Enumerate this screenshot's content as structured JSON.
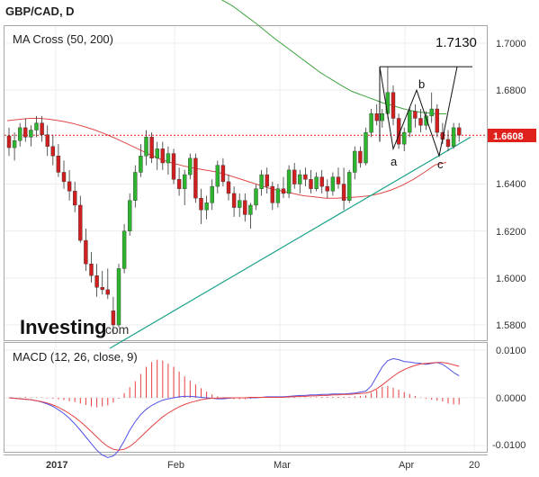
{
  "header": {
    "title": "GBP/CAD, D"
  },
  "brand": {
    "name": "Investing",
    "suffix": ".com"
  },
  "colors": {
    "bull": "#2db52d",
    "bear": "#d11f1f",
    "ma_fast": "#e04848",
    "ma_slow": "#3fa33f",
    "trend": "#19a389",
    "macd_line": "#5050e6",
    "signal_line": "#e64040",
    "hist": "#e64040",
    "price_tag": "#e0201a",
    "frame": "#a8a8a8",
    "grid": "#ececec"
  },
  "chart_data": [
    {
      "type": "candlestick",
      "title": "MA Cross (50, 200)",
      "ylim": [
        1.57,
        1.71
      ],
      "y_ticks": [
        "1.7000",
        "1.6800",
        "1.6600",
        "1.6400",
        "1.6200",
        "1.6000",
        "1.5800"
      ],
      "x_ticks": [
        "2017",
        "Feb",
        "Mar",
        "Apr",
        "20"
      ],
      "last_price_label": "1.6608",
      "annotations": {
        "target": "1.7130",
        "wave_a": "a",
        "wave_b": "b",
        "wave_c": "c"
      },
      "ohlc": [
        [
          1.6605,
          1.664,
          1.652,
          1.6555
        ],
        [
          1.6555,
          1.662,
          1.65,
          1.6585
        ],
        [
          1.6585,
          1.666,
          1.656,
          1.664
        ],
        [
          1.664,
          1.668,
          1.658,
          1.66
        ],
        [
          1.66,
          1.665,
          1.656,
          1.663
        ],
        [
          1.663,
          1.669,
          1.66,
          1.666
        ],
        [
          1.666,
          1.669,
          1.658,
          1.661
        ],
        [
          1.661,
          1.665,
          1.652,
          1.656
        ],
        [
          1.656,
          1.661,
          1.648,
          1.652
        ],
        [
          1.652,
          1.657,
          1.643,
          1.645
        ],
        [
          1.645,
          1.65,
          1.638,
          1.641
        ],
        [
          1.641,
          1.646,
          1.633,
          1.637
        ],
        [
          1.637,
          1.641,
          1.628,
          1.631
        ],
        [
          1.631,
          1.635,
          1.615,
          1.616
        ],
        [
          1.616,
          1.621,
          1.603,
          1.606
        ],
        [
          1.606,
          1.611,
          1.598,
          1.601
        ],
        [
          1.601,
          1.606,
          1.592,
          1.596
        ],
        [
          1.596,
          1.603,
          1.593,
          1.595
        ],
        [
          1.595,
          1.604,
          1.591,
          1.593
        ],
        [
          1.586,
          1.592,
          1.576,
          1.58
        ],
        [
          1.58,
          1.606,
          1.579,
          1.604
        ],
        [
          1.604,
          1.623,
          1.602,
          1.62
        ],
        [
          1.62,
          1.636,
          1.618,
          1.633
        ],
        [
          1.633,
          1.648,
          1.63,
          1.645
        ],
        [
          1.645,
          1.657,
          1.643,
          1.652
        ],
        [
          1.652,
          1.663,
          1.648,
          1.66
        ],
        [
          1.66,
          1.662,
          1.649,
          1.651
        ],
        [
          1.651,
          1.658,
          1.646,
          1.655
        ],
        [
          1.655,
          1.658,
          1.646,
          1.649
        ],
        [
          1.649,
          1.656,
          1.644,
          1.653
        ],
        [
          1.653,
          1.655,
          1.64,
          1.642
        ],
        [
          1.642,
          1.647,
          1.635,
          1.638
        ],
        [
          1.638,
          1.646,
          1.631,
          1.644
        ],
        [
          1.644,
          1.653,
          1.642,
          1.651
        ],
        [
          1.651,
          1.653,
          1.632,
          1.634
        ],
        [
          1.634,
          1.638,
          1.623,
          1.629
        ],
        [
          1.629,
          1.635,
          1.625,
          1.632
        ],
        [
          1.632,
          1.642,
          1.629,
          1.639
        ],
        [
          1.639,
          1.65,
          1.636,
          1.648
        ],
        [
          1.648,
          1.651,
          1.639,
          1.641
        ],
        [
          1.641,
          1.644,
          1.633,
          1.636
        ],
        [
          1.636,
          1.639,
          1.626,
          1.63
        ],
        [
          1.63,
          1.636,
          1.626,
          1.633
        ],
        [
          1.633,
          1.636,
          1.624,
          1.627
        ],
        [
          1.627,
          1.632,
          1.621,
          1.631
        ],
        [
          1.631,
          1.64,
          1.629,
          1.638
        ],
        [
          1.638,
          1.646,
          1.635,
          1.644
        ],
        [
          1.644,
          1.647,
          1.636,
          1.639
        ],
        [
          1.639,
          1.641,
          1.629,
          1.632
        ],
        [
          1.632,
          1.64,
          1.63,
          1.638
        ],
        [
          1.638,
          1.643,
          1.634,
          1.636
        ],
        [
          1.636,
          1.648,
          1.634,
          1.646
        ],
        [
          1.646,
          1.649,
          1.638,
          1.64
        ],
        [
          1.64,
          1.646,
          1.636,
          1.644
        ],
        [
          1.644,
          1.647,
          1.639,
          1.642
        ],
        [
          1.642,
          1.646,
          1.636,
          1.638
        ],
        [
          1.638,
          1.645,
          1.637,
          1.643
        ],
        [
          1.643,
          1.646,
          1.636,
          1.639
        ],
        [
          1.639,
          1.642,
          1.634,
          1.637
        ],
        [
          1.637,
          1.645,
          1.635,
          1.643
        ],
        [
          1.643,
          1.647,
          1.638,
          1.64
        ],
        [
          1.64,
          1.647,
          1.629,
          1.633
        ],
        [
          1.633,
          1.646,
          1.632,
          1.645
        ],
        [
          1.645,
          1.656,
          1.642,
          1.654
        ],
        [
          1.654,
          1.656,
          1.647,
          1.649
        ],
        [
          1.649,
          1.664,
          1.648,
          1.662
        ],
        [
          1.662,
          1.672,
          1.66,
          1.67
        ],
        [
          1.67,
          1.674,
          1.665,
          1.667
        ],
        [
          1.667,
          1.672,
          1.664,
          1.67
        ],
        [
          1.67,
          1.69,
          1.668,
          1.679
        ],
        [
          1.679,
          1.682,
          1.665,
          1.668
        ],
        [
          1.668,
          1.67,
          1.655,
          1.657
        ],
        [
          1.657,
          1.664,
          1.654,
          1.662
        ],
        [
          1.662,
          1.673,
          1.66,
          1.671
        ],
        [
          1.671,
          1.674,
          1.664,
          1.668
        ],
        [
          1.668,
          1.672,
          1.662,
          1.665
        ],
        [
          1.665,
          1.671,
          1.663,
          1.669
        ],
        [
          1.669,
          1.679,
          1.666,
          1.672
        ],
        [
          1.672,
          1.674,
          1.66,
          1.662
        ],
        [
          1.662,
          1.666,
          1.657,
          1.659
        ],
        [
          1.659,
          1.663,
          1.654,
          1.656
        ],
        [
          1.656,
          1.666,
          1.655,
          1.664
        ],
        [
          1.664,
          1.666,
          1.658,
          1.6608
        ]
      ],
      "ma_fast": [
        1.667,
        1.6675,
        1.668,
        1.668,
        1.6675,
        1.6668,
        1.6658,
        1.6645,
        1.663,
        1.6612,
        1.6592,
        1.657,
        1.6548,
        1.6525,
        1.6505,
        1.649,
        1.6478,
        1.6468,
        1.646,
        1.6452,
        1.644,
        1.6425,
        1.641,
        1.6395,
        1.638,
        1.637,
        1.636,
        1.635,
        1.6345,
        1.634,
        1.634,
        1.6342,
        1.6345,
        1.635,
        1.636,
        1.6375,
        1.6395,
        1.642,
        1.645,
        1.6482,
        1.6492
      ],
      "ma_slow": [
        1.7205,
        1.719,
        1.7175,
        1.716,
        1.714,
        1.712,
        1.71,
        1.708,
        1.7058,
        1.7036,
        1.7015,
        1.6995,
        1.6975,
        1.6955,
        1.6935,
        1.6915,
        1.6895,
        1.6875,
        1.6858,
        1.6842,
        1.6825,
        1.681,
        1.6795,
        1.6785,
        1.6775,
        1.6765,
        1.6755,
        1.6745,
        1.6738,
        1.673,
        1.6722,
        1.6715,
        1.671,
        1.6706,
        1.6703,
        1.67,
        1.6699,
        1.6699
      ]
    },
    {
      "type": "macd",
      "title": "MACD (12, 26, close, 9)",
      "ylim": [
        -0.011,
        0.011
      ],
      "y_ticks": [
        "0.0100",
        "0.0000",
        "-0.0100"
      ],
      "hist": [
        0.0,
        0.0,
        0.0001,
        0.0002,
        0.0001,
        0.0001,
        0.0001,
        -0.0001,
        -0.0002,
        -0.0003,
        -0.0005,
        -0.0007,
        -0.0009,
        -0.0012,
        -0.0015,
        -0.0018,
        -0.002,
        -0.0018,
        -0.0016,
        -0.001,
        -0.0002,
        0.001,
        0.0022,
        0.0035,
        0.005,
        0.0065,
        0.0075,
        0.008,
        0.0078,
        0.0072,
        0.0065,
        0.0055,
        0.0045,
        0.0036,
        0.0028,
        0.002,
        0.0013,
        0.0007,
        0.0003,
        0.0,
        -0.0002,
        -0.0003,
        -0.0003,
        -0.0003,
        -0.0002,
        -0.0001,
        0.0,
        0.0001,
        0.0002,
        0.0002,
        0.0001,
        0.0001,
        0.0001,
        0.0001,
        0.0001,
        0.0001,
        0.0001,
        0.0002,
        0.0002,
        0.0002,
        0.0002,
        0.0002,
        0.0002,
        0.0003,
        0.0004,
        0.0005,
        0.001,
        0.0017,
        0.0023,
        0.0025,
        0.0021,
        0.0017,
        0.0012,
        0.0008,
        0.0004,
        0.0001,
        -0.0002,
        -0.0004,
        -0.0006,
        -0.0008,
        -0.0012,
        -0.0014,
        -0.0014
      ],
      "macd": [
        0.0,
        -0.0001,
        -0.0002,
        -0.0003,
        -0.0004,
        -0.0006,
        -0.0009,
        -0.0013,
        -0.0018,
        -0.0025,
        -0.0033,
        -0.0043,
        -0.0055,
        -0.0068,
        -0.0082,
        -0.0096,
        -0.011,
        -0.012,
        -0.0125,
        -0.0122,
        -0.011,
        -0.009,
        -0.0068,
        -0.005,
        -0.0035,
        -0.0024,
        -0.0016,
        -0.001,
        -0.0005,
        -0.0002,
        0.0,
        0.0002,
        0.0003,
        0.0003,
        0.0002,
        0.0001,
        0.0,
        -0.0001,
        -0.0002,
        -0.0002,
        -0.0001,
        0.0,
        0.0,
        0.0,
        0.0,
        0.0,
        0.0001,
        0.0002,
        0.0002,
        0.0002,
        0.0002,
        0.0003,
        0.0004,
        0.0005,
        0.0005,
        0.0006,
        0.0006,
        0.0007,
        0.0007,
        0.0008,
        0.0008,
        0.0008,
        0.0009,
        0.001,
        0.0012,
        0.0014,
        0.0025,
        0.0045,
        0.0065,
        0.0078,
        0.0082,
        0.008,
        0.0076,
        0.0075,
        0.0073,
        0.0072,
        0.007,
        0.0072,
        0.0074,
        0.007,
        0.0062,
        0.0053,
        0.0046
      ],
      "signal": [
        0.0,
        -0.0001,
        -0.0002,
        -0.0003,
        -0.0004,
        -0.0006,
        -0.0008,
        -0.0011,
        -0.0015,
        -0.002,
        -0.0026,
        -0.0033,
        -0.0041,
        -0.005,
        -0.006,
        -0.0071,
        -0.0082,
        -0.0093,
        -0.0102,
        -0.0108,
        -0.011,
        -0.0108,
        -0.0102,
        -0.0093,
        -0.0082,
        -0.0071,
        -0.006,
        -0.005,
        -0.004,
        -0.0032,
        -0.0025,
        -0.0019,
        -0.0014,
        -0.001,
        -0.0007,
        -0.0004,
        -0.0002,
        -0.0001,
        -0.0001,
        0.0,
        0.0,
        0.0,
        0.0,
        0.0,
        0.0001,
        0.0001,
        0.0001,
        0.0001,
        0.0001,
        0.0001,
        0.0001,
        0.0002,
        0.0002,
        0.0003,
        0.0003,
        0.0004,
        0.0004,
        0.0005,
        0.0005,
        0.0006,
        0.0006,
        0.0007,
        0.0007,
        0.0008,
        0.0009,
        0.001,
        0.0013,
        0.0019,
        0.0027,
        0.0036,
        0.0045,
        0.0053,
        0.0059,
        0.0064,
        0.0068,
        0.0071,
        0.0072,
        0.0073,
        0.0074,
        0.0074,
        0.0072,
        0.0069,
        0.0066
      ]
    }
  ]
}
